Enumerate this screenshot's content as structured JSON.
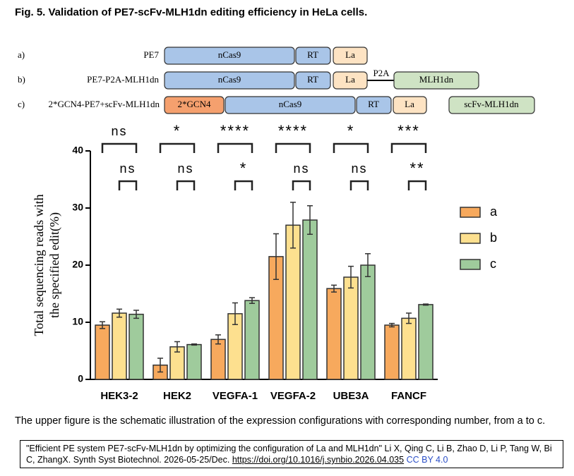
{
  "figure_title": "Fig. 5. Validation of PE7-scFv-MLH1dn editing efficiency in HeLa cells.",
  "schematic": {
    "rows": [
      {
        "letter": "a)",
        "name": "PE7",
        "parts": [
          "nCas9",
          "RT",
          "La"
        ]
      },
      {
        "letter": "b)",
        "name": "PE7-P2A-MLH1dn",
        "parts": [
          "nCas9",
          "RT",
          "La",
          "P2A",
          "MLH1dn"
        ]
      },
      {
        "letter": "c)",
        "name": "2*GCN4-PE7+scFv-MLH1dn",
        "parts": [
          "2*GCN4",
          "nCas9",
          "RT",
          "La",
          "scFv-MLH1dn"
        ]
      }
    ]
  },
  "chart_data": {
    "type": "bar",
    "y_label": [
      "Total sequencing reads with",
      "the specified edit(%)"
    ],
    "categories": [
      "HEK3-2",
      "HEK2",
      "VEGFA-1",
      "VEGFA-2",
      "UBE3A",
      "FANCF"
    ],
    "series": [
      {
        "name": "a",
        "color": "#f7a95d",
        "values": [
          9.5,
          2.5,
          7.0,
          21.5,
          15.9,
          9.5
        ],
        "errors": [
          0.6,
          1.2,
          0.8,
          4.0,
          0.6,
          0.3
        ]
      },
      {
        "name": "b",
        "color": "#fde08f",
        "values": [
          11.6,
          5.7,
          11.5,
          27.0,
          17.9,
          10.7
        ],
        "errors": [
          0.7,
          0.9,
          1.9,
          4.0,
          1.9,
          0.9
        ]
      },
      {
        "name": "c",
        "color": "#9fcb9c",
        "values": [
          11.4,
          6.1,
          13.8,
          27.9,
          20.0,
          13.1
        ],
        "errors": [
          0.7,
          0.1,
          0.5,
          2.5,
          2.0,
          0.1
        ]
      }
    ],
    "significance": [
      [
        "ns",
        "*",
        "****",
        "****",
        "*",
        "***"
      ],
      [
        "ns",
        "ns",
        "*",
        "ns",
        "ns",
        "**"
      ]
    ],
    "ylim": [
      0,
      40
    ],
    "yticks": [
      0,
      10,
      20,
      30,
      40
    ],
    "grid": false,
    "legend": "right"
  },
  "caption": "The upper figure is the schematic illustration of the expression configurations with corresponding number, from a to c.",
  "citation": {
    "text": "\"Efficient PE system PE7-scFv-MLH1dn by optimizing the configuration of La and MLH1dn\" Li X, Qing C, Li B, Zhao D, Li P, Tang W, Bi C, ZhangX.  Synth Syst Biotechnol. 2026-05-25/Dec.",
    "link": "https://doi.org/10.1016/j.synbio.2026.04.035",
    "license": "CC BY 4.0"
  }
}
